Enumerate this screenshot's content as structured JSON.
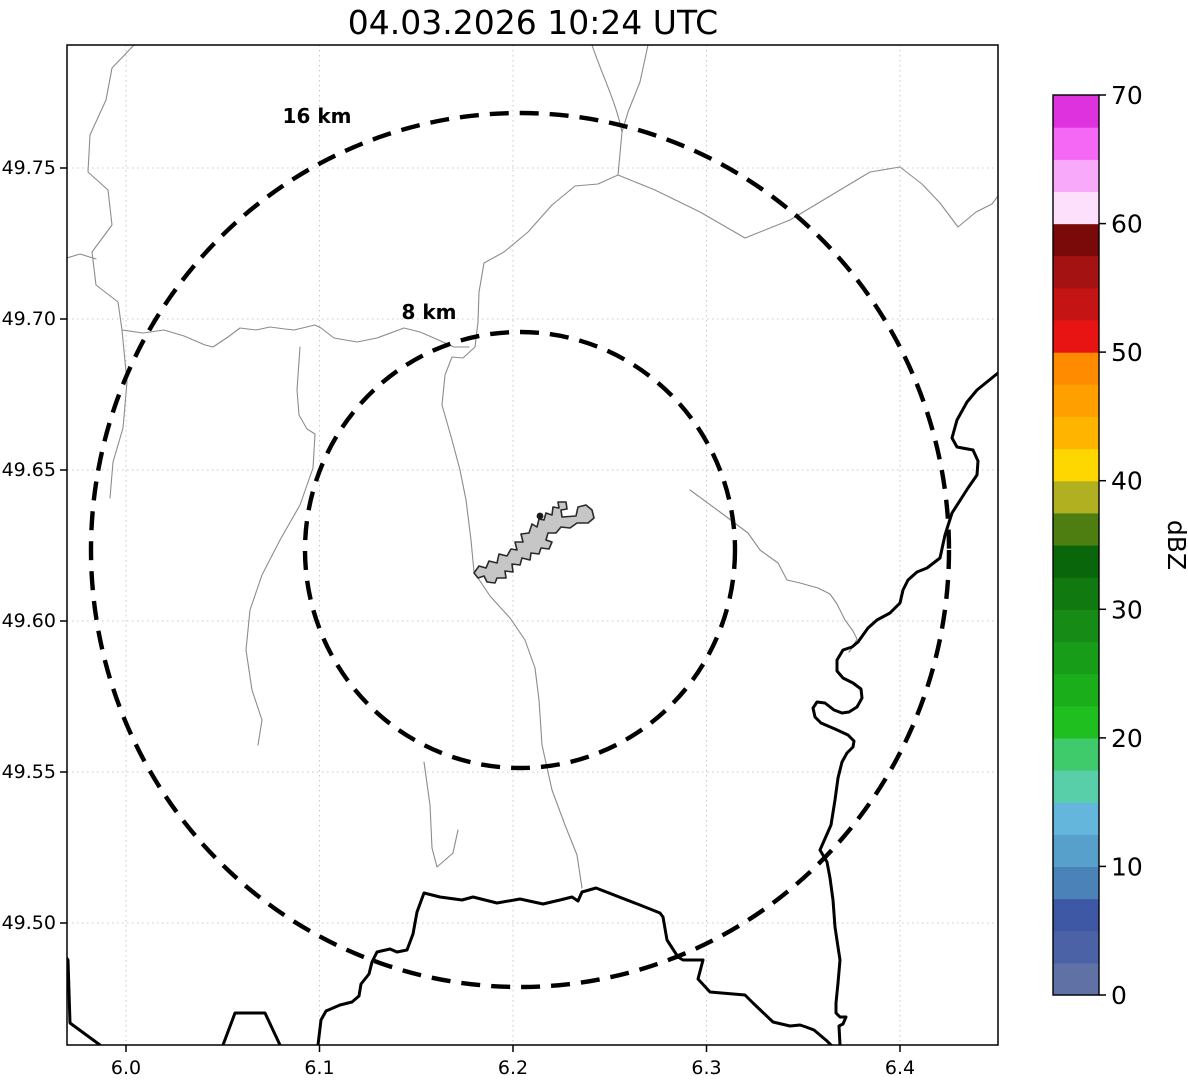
{
  "title": "04.03.2026 10:24 UTC",
  "map": {
    "x_axis": {
      "ticks": [
        "6.0",
        "6.1",
        "6.2",
        "6.3",
        "6.4"
      ]
    },
    "y_axis": {
      "ticks": [
        "49.75",
        "49.70",
        "49.65",
        "49.60",
        "49.55",
        "49.50"
      ]
    },
    "range_rings": [
      {
        "label": "16 km",
        "radius_km": 16
      },
      {
        "label": "8 km",
        "radius_km": 8
      }
    ],
    "features": {
      "city_outline": "city-boundary-polygon",
      "radar_site_marker": "small-dark-dot",
      "rivers": "thin-gray-lines",
      "country_borders": "thick-black-lines"
    }
  },
  "colorbar": {
    "label": "dBZ",
    "min": 0,
    "max": 70,
    "step": 2.5,
    "ticks": [
      "0",
      "10",
      "20",
      "30",
      "40",
      "50",
      "60",
      "70"
    ],
    "colors_bottom_to_top": [
      "#5f71a5",
      "#4b62a6",
      "#3f58a5",
      "#4b82b8",
      "#56a0cb",
      "#64b6dc",
      "#59cfa9",
      "#3fca6b",
      "#1fbf1f",
      "#1bae1b",
      "#189d18",
      "#168c16",
      "#107a10",
      "#0a660a",
      "#4e7d12",
      "#b0b021",
      "#ffd700",
      "#ffb400",
      "#ffa000",
      "#ff8c00",
      "#e81414",
      "#c41414",
      "#a51212",
      "#7a0a0a",
      "#fce0fc",
      "#f9a9f9",
      "#f567f5",
      "#de32de"
    ]
  },
  "chart_data": {
    "type": "map",
    "title": "04.03.2026 10:24 UTC",
    "x_ticks": [
      6.0,
      6.1,
      6.2,
      6.3,
      6.4
    ],
    "y_ticks": [
      49.75,
      49.7,
      49.65,
      49.6,
      49.55,
      49.5
    ],
    "x_range": [
      5.97,
      6.45
    ],
    "y_range": [
      49.46,
      49.79
    ],
    "grid": true,
    "range_rings_km": [
      8,
      16
    ],
    "colorbar": {
      "label": "dBZ",
      "range": [
        0,
        70
      ],
      "step": 2.5
    },
    "radar_echoes": "none visible"
  }
}
